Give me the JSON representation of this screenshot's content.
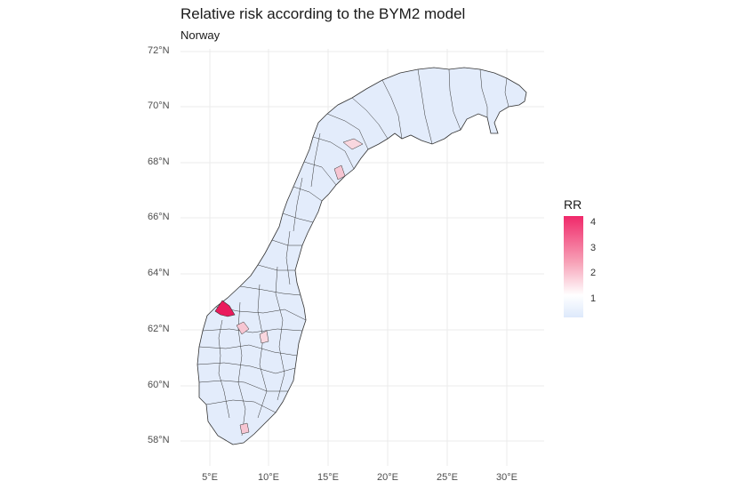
{
  "title": "Relative risk according to the BYM2 model",
  "subtitle": "Norway",
  "legend": {
    "title": "RR",
    "labels": [
      "4",
      "3",
      "2",
      "1"
    ],
    "colors": {
      "high": "#f0296a",
      "mid": "#f7a0b6",
      "one": "#ffffff",
      "low": "#dde9fb"
    }
  },
  "axes": {
    "y_ticks": [
      "72°N",
      "70°N",
      "68°N",
      "66°N",
      "64°N",
      "62°N",
      "60°N",
      "58°N"
    ],
    "x_ticks": [
      "5°E",
      "10°E",
      "15°E",
      "20°E",
      "25°E",
      "30°E"
    ]
  },
  "map": {
    "region": "Norway municipalities",
    "fill_default": "#e3ecfb",
    "highlight_colors": [
      "#ea1a5c",
      "#f6c5d2",
      "#f9d7df"
    ]
  }
}
